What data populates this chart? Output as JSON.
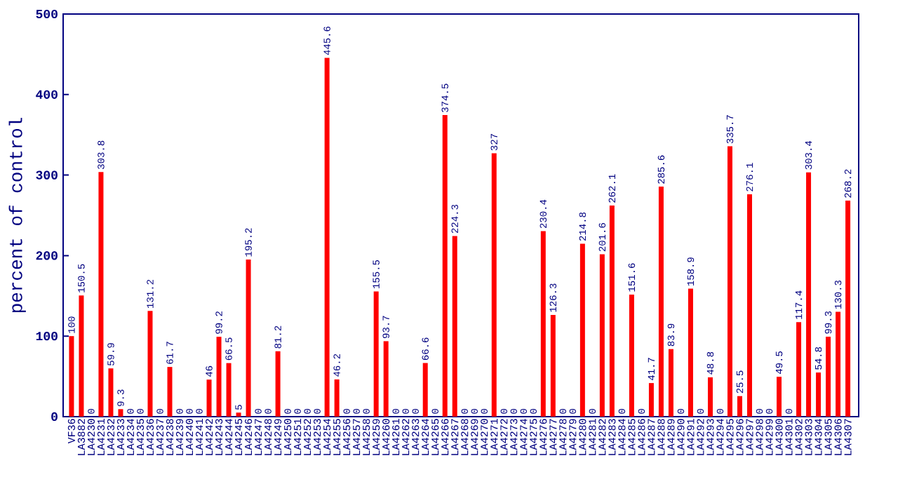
{
  "chart_data": {
    "type": "bar",
    "ylabel": "percent of control",
    "categories": [
      "VF36",
      "LA3882",
      "LA4230",
      "LA4231",
      "LA4232",
      "LA4233",
      "LA4234",
      "LA4235",
      "LA4236",
      "LA4237",
      "LA4238",
      "LA4239",
      "LA4240",
      "LA4241",
      "LA4242",
      "LA4243",
      "LA4244",
      "LA4245",
      "LA4246",
      "LA4247",
      "LA4248",
      "LA4249",
      "LA4250",
      "LA4251",
      "LA4252",
      "LA4253",
      "LA4254",
      "LA4255",
      "LA4256",
      "LA4257",
      "LA4258",
      "LA4259",
      "LA4260",
      "LA4261",
      "LA4262",
      "LA4263",
      "LA4264",
      "LA4265",
      "LA4266",
      "LA4267",
      "LA4268",
      "LA4269",
      "LA4270",
      "LA4271",
      "LA4272",
      "LA4273",
      "LA4274",
      "LA4275",
      "LA4276",
      "LA4277",
      "LA4278",
      "LA4279",
      "LA4280",
      "LA4281",
      "LA4282",
      "LA4283",
      "LA4284",
      "LA4285",
      "LA4286",
      "LA4287",
      "LA4288",
      "LA4289",
      "LA4290",
      "LA4291",
      "LA4292",
      "LA4293",
      "LA4294",
      "LA4295",
      "LA4296",
      "LA4297",
      "LA4298",
      "LA4299",
      "LA4300",
      "LA4301",
      "LA4302",
      "LA4303",
      "LA4304",
      "LA4305",
      "LA4306",
      "LA4307"
    ],
    "values": [
      100,
      150.5,
      0,
      303.8,
      59.9,
      9.3,
      0,
      0,
      131.2,
      0,
      61.7,
      0,
      0,
      0,
      46,
      99.2,
      66.5,
      5,
      195.2,
      0,
      0,
      81.2,
      0,
      0,
      0,
      0,
      445.6,
      46.2,
      0,
      0,
      0,
      155.5,
      93.7,
      0,
      0,
      0,
      66.6,
      0,
      374.5,
      224.3,
      0,
      0,
      0,
      327,
      0,
      0,
      0,
      0,
      230.4,
      126.3,
      0,
      0,
      214.8,
      0,
      201.6,
      262.1,
      0,
      151.6,
      0,
      41.7,
      285.6,
      83.9,
      0,
      158.9,
      0,
      48.8,
      0,
      335.7,
      25.5,
      276.1,
      0,
      0,
      49.5,
      0,
      117.4,
      303.4,
      54.8,
      99.3,
      130.3,
      268.2
    ],
    "color": "#ff0000",
    "ylim": [
      0,
      500
    ],
    "yticks": [
      0,
      100,
      200,
      300,
      400,
      500
    ],
    "data_labels": true
  }
}
